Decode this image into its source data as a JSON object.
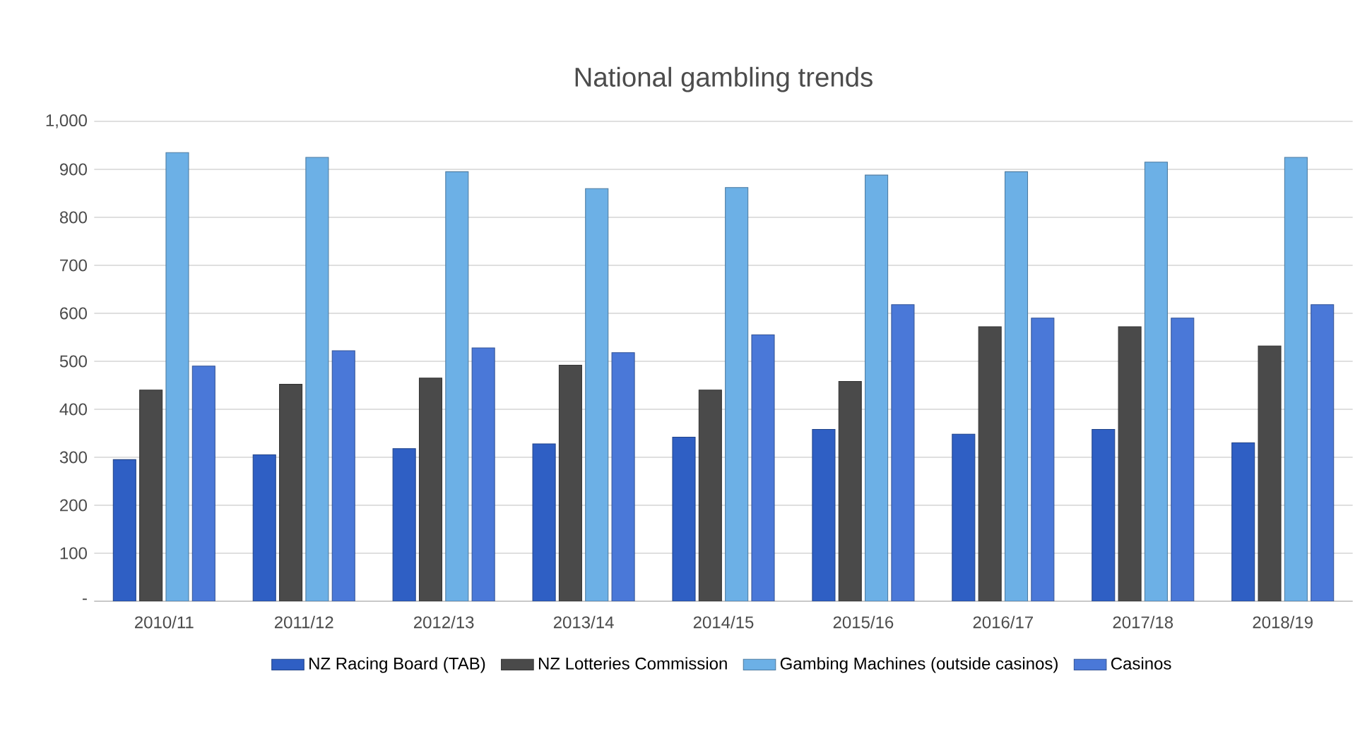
{
  "chart_data": {
    "type": "bar",
    "title": "National gambling trends",
    "categories": [
      "2010/11",
      "2011/12",
      "2012/13",
      "2013/14",
      "2014/15",
      "2015/16",
      "2016/17",
      "2017/18",
      "2018/19"
    ],
    "series": [
      {
        "name": "NZ Racing Board (TAB)",
        "color": "#2f5fc4",
        "values": [
          295,
          305,
          318,
          328,
          342,
          358,
          348,
          358,
          330
        ]
      },
      {
        "name": "NZ Lotteries Commission",
        "color": "#4a4a4a",
        "values": [
          440,
          452,
          465,
          492,
          440,
          458,
          572,
          572,
          532
        ]
      },
      {
        "name": "Gambing Machines (outside casinos)",
        "color": "#6cb0e6",
        "values": [
          935,
          925,
          895,
          860,
          862,
          888,
          895,
          915,
          925
        ]
      },
      {
        "name": "Casinos",
        "color": "#4a78d8",
        "values": [
          490,
          522,
          528,
          518,
          555,
          618,
          590,
          590,
          618
        ]
      }
    ],
    "ylim": [
      0,
      1000
    ],
    "yticks": [
      {
        "value": 0,
        "label": "-"
      },
      100,
      200,
      300,
      400,
      500,
      600,
      700,
      800,
      900,
      {
        "value": 1000,
        "label": "1,000"
      }
    ],
    "grid": "y",
    "legend": "bottom"
  }
}
